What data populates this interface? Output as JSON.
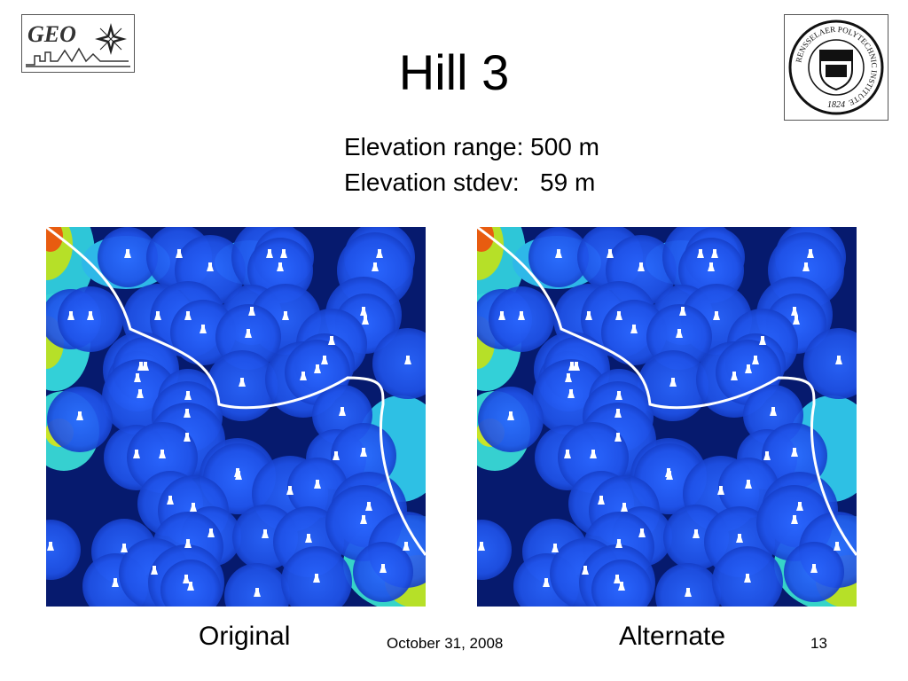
{
  "logos": {
    "geo_text": "GEO",
    "rpi_ring_text": "RENSSELAER POLYTECHNIC INSTITUTE",
    "rpi_year": "1824"
  },
  "slide": {
    "title": "Hill 3",
    "stats": {
      "range_label": "Elevation range:",
      "range_value": "500 m",
      "stdev_label": "Elevation stdev:",
      "stdev_value": "59 m"
    }
  },
  "maps": {
    "original": {
      "caption": "Original"
    },
    "alternate": {
      "caption": "Alternate"
    }
  },
  "footer": {
    "date": "October 31, 2008",
    "page": "13"
  },
  "colors": {
    "map_base": "#061a6e",
    "observer": "#ffffff",
    "path": "#ffffff"
  }
}
